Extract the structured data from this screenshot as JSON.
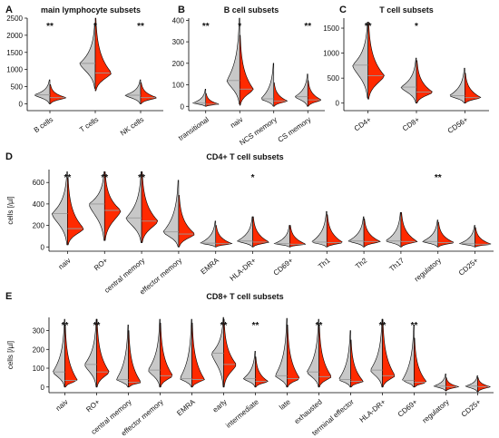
{
  "colors": {
    "left_half": "#c8c8c8",
    "right_half": "#ff2a00",
    "outline": "#000000",
    "median_line": "#9a9a9a"
  },
  "chart_data": [
    {
      "letter": "A",
      "title": "main lymphocyte subsets",
      "type": "violin",
      "ylabel": "",
      "ylim": [
        -200,
        2500
      ],
      "yticks": [
        0,
        500,
        1000,
        1500,
        2000,
        2500
      ],
      "categories": [
        "B cells",
        "T cells",
        "NK cells"
      ],
      "significance": [
        "**",
        "*",
        "**"
      ],
      "series": [
        {
          "median": [
            260,
            1180,
            250
          ],
          "low": [
            0,
            450,
            0
          ],
          "high": [
            700,
            2350,
            700
          ]
        },
        {
          "median": [
            180,
            900,
            180
          ],
          "low": [
            0,
            380,
            0
          ],
          "high": [
            560,
            2500,
            620
          ]
        }
      ]
    },
    {
      "letter": "B",
      "title": "B cell subsets",
      "type": "violin",
      "ylabel": "",
      "ylim": [
        -20,
        410
      ],
      "yticks": [
        0,
        100,
        200,
        300,
        400
      ],
      "categories": [
        "transitional",
        "naiv",
        "NCS memory",
        "CS memory"
      ],
      "significance": [
        "**",
        "*",
        "",
        "**"
      ],
      "series": [
        {
          "median": [
            15,
            120,
            35,
            45
          ],
          "low": [
            0,
            10,
            0,
            0
          ],
          "high": [
            80,
            410,
            200,
            150
          ]
        },
        {
          "median": [
            10,
            80,
            25,
            30
          ],
          "low": [
            0,
            5,
            0,
            0
          ],
          "high": [
            60,
            330,
            110,
            120
          ]
        }
      ]
    },
    {
      "letter": "C",
      "title": "T cell subsets",
      "type": "violin",
      "ylabel": "",
      "ylim": [
        -150,
        1700
      ],
      "yticks": [
        0,
        500,
        1000,
        1500
      ],
      "categories": [
        "CD4+",
        "CD8+",
        "CD56+"
      ],
      "significance": [
        "**",
        "*",
        ""
      ],
      "series": [
        {
          "median": [
            760,
            320,
            150
          ],
          "low": [
            100,
            0,
            0
          ],
          "high": [
            1620,
            900,
            700
          ]
        },
        {
          "median": [
            550,
            220,
            110
          ],
          "low": [
            80,
            0,
            0
          ],
          "high": [
            1620,
            850,
            600
          ]
        }
      ]
    },
    {
      "letter": "D",
      "title": "CD4+ T cell subsets",
      "type": "violin",
      "ylabel": "cells [/µl]",
      "ylim": [
        -40,
        720
      ],
      "yticks": [
        0,
        200,
        400,
        600
      ],
      "categories": [
        "naiv",
        "RO+",
        "central memory",
        "effector memory",
        "EMRA",
        "HLA-DR+",
        "CD69+",
        "Th1",
        "Th2",
        "Th17",
        "regulatory",
        "CD25+"
      ],
      "significance": [
        "**",
        "**",
        "**",
        "",
        "",
        "*",
        "",
        "",
        "",
        "",
        "**",
        ""
      ],
      "series": [
        {
          "median": [
            310,
            400,
            270,
            140,
            35,
            55,
            30,
            45,
            55,
            55,
            50,
            30
          ],
          "low": [
            20,
            60,
            40,
            0,
            0,
            0,
            0,
            0,
            0,
            0,
            0,
            0
          ],
          "high": [
            700,
            700,
            700,
            620,
            240,
            280,
            200,
            330,
            280,
            320,
            250,
            200
          ]
        },
        {
          "median": [
            170,
            340,
            240,
            120,
            30,
            45,
            25,
            40,
            50,
            50,
            40,
            25
          ],
          "low": [
            20,
            60,
            40,
            0,
            0,
            0,
            0,
            0,
            0,
            0,
            0,
            0
          ],
          "high": [
            640,
            700,
            700,
            480,
            200,
            280,
            200,
            300,
            260,
            320,
            230,
            180
          ]
        }
      ]
    },
    {
      "letter": "E",
      "title": "CD8+ T cell subsets",
      "type": "violin",
      "ylabel": "cells [/µl]",
      "ylim": [
        -30,
        370
      ],
      "yticks": [
        0,
        100,
        200,
        300
      ],
      "categories": [
        "naiv",
        "RO+",
        "central memory",
        "effector memory",
        "EMRA",
        "early",
        "intermediate",
        "late",
        "exhausted",
        "terminal effector",
        "HLA-DR+",
        "CD69+",
        "regulatory",
        "CD25+"
      ],
      "significance": [
        "**",
        "**",
        "",
        "",
        "",
        "**",
        "**",
        "",
        "**",
        "",
        "**",
        "**",
        "",
        ""
      ],
      "series": [
        {
          "median": [
            80,
            120,
            40,
            90,
            45,
            180,
            45,
            60,
            80,
            40,
            90,
            35,
            5,
            5
          ],
          "low": [
            0,
            0,
            0,
            0,
            0,
            0,
            0,
            0,
            0,
            0,
            0,
            0,
            -20,
            -25
          ],
          "high": [
            360,
            360,
            330,
            360,
            360,
            370,
            190,
            365,
            360,
            300,
            360,
            330,
            70,
            60
          ]
        },
        {
          "median": [
            35,
            80,
            25,
            60,
            40,
            120,
            30,
            45,
            55,
            30,
            60,
            25,
            2,
            2
          ],
          "low": [
            0,
            0,
            0,
            0,
            0,
            0,
            0,
            0,
            0,
            0,
            0,
            0,
            -20,
            -25
          ],
          "high": [
            330,
            360,
            300,
            340,
            340,
            360,
            160,
            330,
            330,
            250,
            360,
            260,
            50,
            50
          ]
        }
      ]
    }
  ]
}
